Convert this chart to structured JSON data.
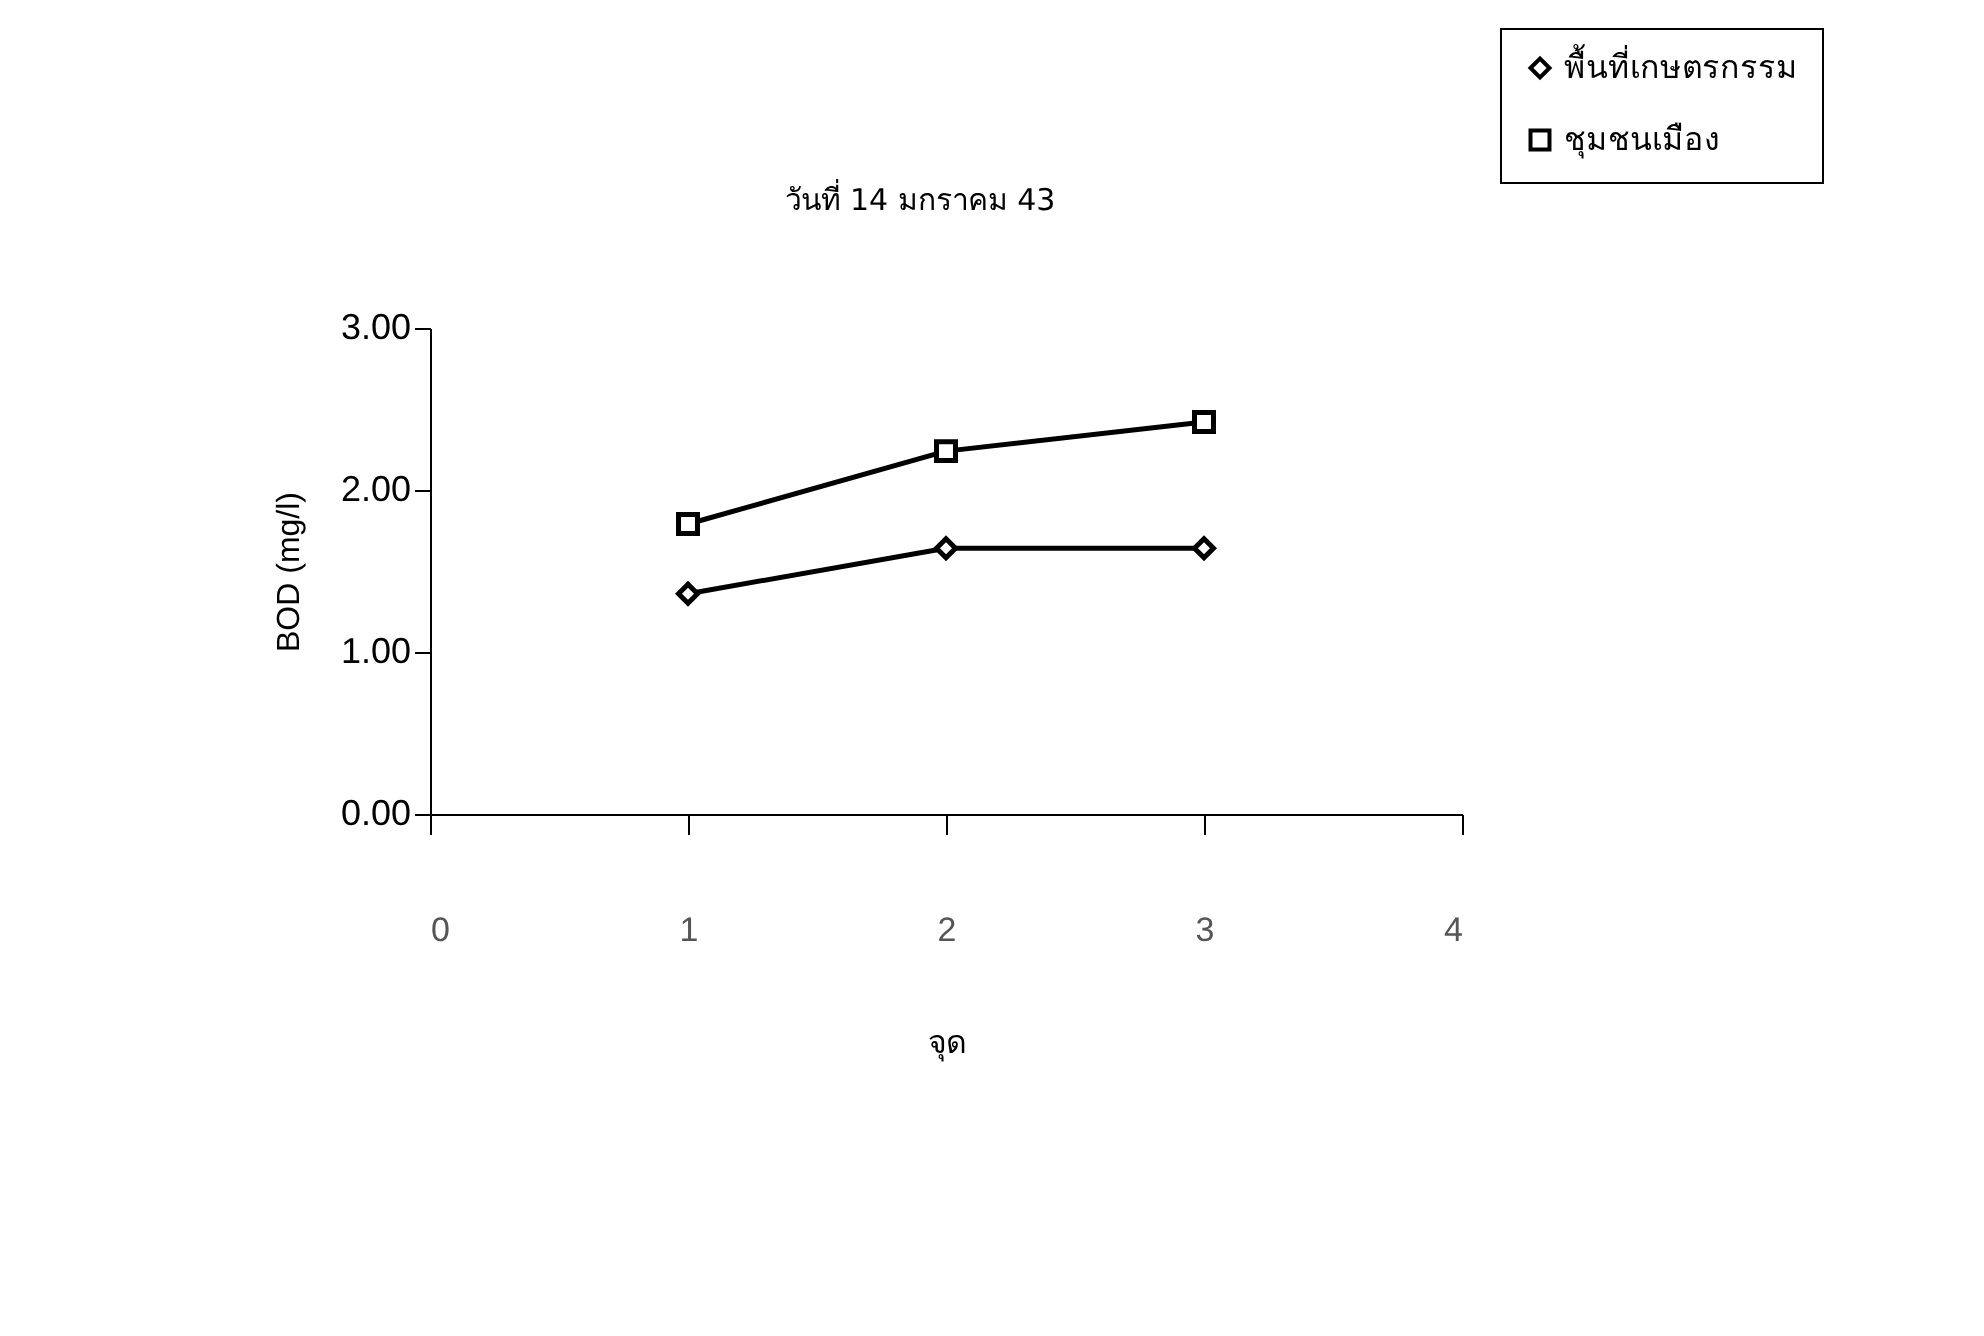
{
  "chart_data": {
    "type": "line",
    "title": "วันที่ 14 มกราคม  43",
    "xlabel": "จุด",
    "ylabel": "BOD (mg/l)",
    "x": [
      1,
      2,
      3
    ],
    "series": [
      {
        "name": "พื้นที่เกษตรกรรม",
        "color": "#000000",
        "marker": "diamond",
        "values": [
          1.36,
          1.64,
          1.64
        ]
      },
      {
        "name": "ชุมชนเมือง",
        "color": "#000000",
        "marker": "square",
        "values": [
          1.79,
          2.24,
          2.42
        ]
      }
    ],
    "xlim": [
      0,
      4
    ],
    "xticks": [
      0,
      1,
      2,
      3,
      4
    ],
    "ylim": [
      0,
      3
    ],
    "yticks": [
      {
        "value": 0,
        "label": "0.00"
      },
      {
        "value": 1,
        "label": "1.00"
      },
      {
        "value": 2,
        "label": "2.00"
      },
      {
        "value": 3,
        "label": "3.00"
      }
    ],
    "grid": false,
    "legend": "top right",
    "line_style": "solid"
  }
}
